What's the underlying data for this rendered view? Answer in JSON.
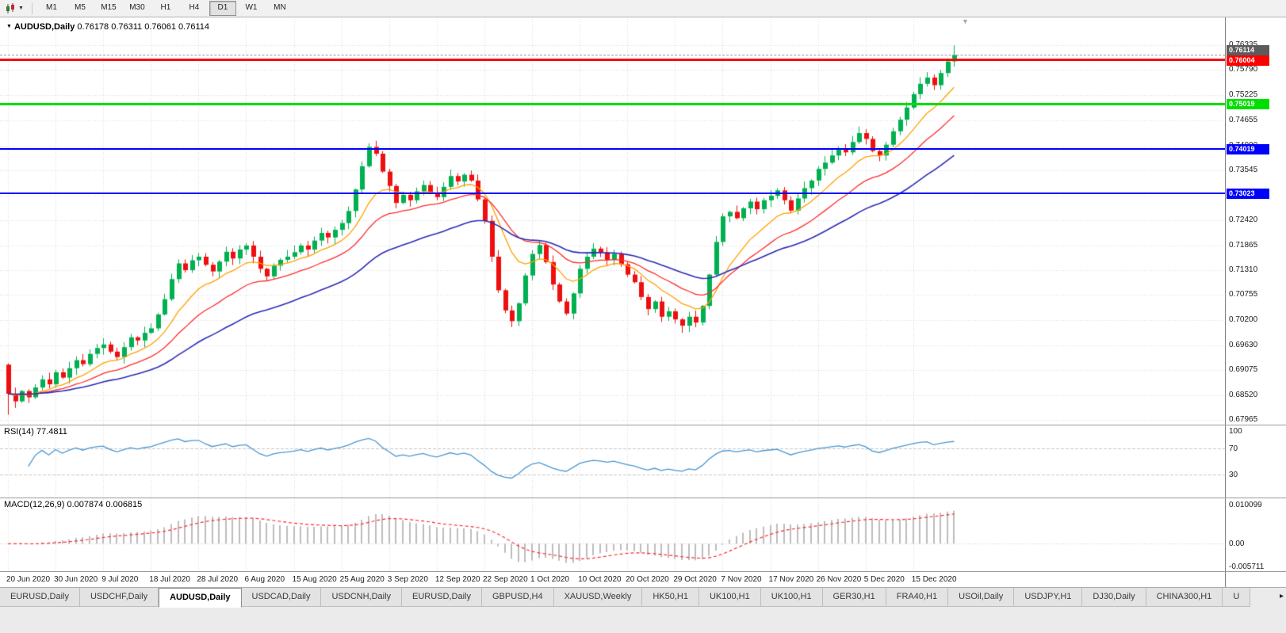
{
  "toolbar": {
    "timeframes": [
      "M1",
      "M5",
      "M15",
      "M30",
      "H1",
      "H4",
      "D1",
      "W1",
      "MN"
    ],
    "active_timeframe": "D1"
  },
  "icons": {
    "dropdown_caret": "▼",
    "title_triangle": "▼",
    "shift_marker": "▼",
    "tab_scroll_right": "▸"
  },
  "colors": {
    "candle_up": "#00B050",
    "candle_down": "#EE0F0F",
    "grid": "#D9D9D9"
  },
  "chart_data": {
    "type": "candlestick",
    "symbol_title": "AUDUSD,Daily",
    "ohlc_text": "0.76178 0.76311 0.76061 0.76114",
    "timeframe": "Daily",
    "price_range": [
      0.6786,
      0.7697
    ],
    "y_axis_labels": [
      "0.76335",
      "0.75790",
      "0.75225",
      "0.74655",
      "0.74090",
      "0.73545",
      "0.72980",
      "0.72420",
      "0.71865",
      "0.71310",
      "0.70755",
      "0.70200",
      "0.69630",
      "0.69075",
      "0.68520",
      "0.67965"
    ],
    "x_labels": [
      "20 Jun 2020",
      "30 Jun 2020",
      "9 Jul 2020",
      "18 Jul 2020",
      "28 Jul 2020",
      "6 Aug 2020",
      "15 Aug 2020",
      "25 Aug 2020",
      "3 Sep 2020",
      "12 Sep 2020",
      "22 Sep 2020",
      "1 Oct 2020",
      "10 Oct 2020",
      "20 Oct 2020",
      "29 Oct 2020",
      "7 Nov 2020",
      "17 Nov 2020",
      "26 Nov 2020",
      "5 Dec 2020",
      "15 Dec 2020"
    ],
    "bars_per_label": 7,
    "first_open": 0.692,
    "closes": [
      0.6855,
      0.6838,
      0.6861,
      0.6847,
      0.6869,
      0.6887,
      0.6876,
      0.6903,
      0.6891,
      0.6912,
      0.693,
      0.6921,
      0.6944,
      0.6957,
      0.6965,
      0.6949,
      0.6937,
      0.6959,
      0.6981,
      0.6974,
      0.6991,
      0.7001,
      0.7032,
      0.7066,
      0.7111,
      0.7146,
      0.7131,
      0.7153,
      0.7161,
      0.7143,
      0.7128,
      0.715,
      0.7172,
      0.7157,
      0.7177,
      0.7186,
      0.7161,
      0.7134,
      0.7117,
      0.7141,
      0.7154,
      0.7161,
      0.7171,
      0.7186,
      0.7177,
      0.7197,
      0.7214,
      0.7204,
      0.7221,
      0.7236,
      0.7263,
      0.7311,
      0.7363,
      0.7406,
      0.7391,
      0.7351,
      0.7319,
      0.7281,
      0.7299,
      0.7287,
      0.7307,
      0.7321,
      0.7304,
      0.7294,
      0.7317,
      0.7341,
      0.7329,
      0.7344,
      0.7331,
      0.7289,
      0.7241,
      0.7161,
      0.7086,
      0.7041,
      0.7017,
      0.7057,
      0.7119,
      0.7167,
      0.7187,
      0.7149,
      0.7099,
      0.7061,
      0.7034,
      0.7079,
      0.7134,
      0.7161,
      0.7179,
      0.7171,
      0.7154,
      0.7167,
      0.7144,
      0.7121,
      0.7104,
      0.7071,
      0.7044,
      0.7061,
      0.7027,
      0.7039,
      0.7021,
      0.7007,
      0.7027,
      0.7014,
      0.7051,
      0.7121,
      0.7194,
      0.7251,
      0.7261,
      0.7247,
      0.7269,
      0.7284,
      0.7267,
      0.7287,
      0.7297,
      0.7309,
      0.7287,
      0.7264,
      0.7291,
      0.7314,
      0.7331,
      0.7357,
      0.7371,
      0.7387,
      0.7401,
      0.7394,
      0.7417,
      0.7437,
      0.7424,
      0.7397,
      0.7387,
      0.7411,
      0.7441,
      0.7467,
      0.7494,
      0.7524,
      0.7547,
      0.7561,
      0.7544,
      0.7571,
      0.7597,
      0.76114
    ],
    "wick_overrides": {
      "0": {
        "low": 0.6808
      },
      "53": {
        "high": 0.7414
      },
      "74": {
        "low": 0.7004
      },
      "99": {
        "low": 0.6991
      },
      "139": {
        "high": 0.76335
      }
    },
    "current_price": {
      "label": "0.76114",
      "color": "#5B5B5B"
    },
    "horizontal_lines": [
      {
        "price": "0.76004",
        "color": "#FF0000",
        "thickness": 3
      },
      {
        "price": "0.75019",
        "color": "#00E000",
        "thickness": 3
      },
      {
        "price": "0.74019",
        "color": "#0000FF",
        "thickness": 2
      },
      {
        "price": "0.73023",
        "color": "#0000FF",
        "thickness": 2
      }
    ],
    "moving_averages": [
      {
        "period": 10,
        "type": "ema",
        "color": "#FFA000",
        "line_width": 1.3
      },
      {
        "period": 20,
        "type": "ema",
        "color": "#FF2A2A",
        "line_width": 1.3
      },
      {
        "period": 40,
        "type": "ema",
        "color": "#2A2AB8",
        "line_width": 1.6
      }
    ],
    "indicators": {
      "rsi": {
        "title": "RSI(14) 77.4811",
        "period": 14,
        "last_value": "77.4811",
        "levels": [
          70,
          30
        ],
        "axis_labels": [
          "100",
          "70",
          "30"
        ],
        "range": [
          0,
          100
        ],
        "color": "#4A96D2"
      },
      "macd": {
        "title": "MACD(12,26,9) 0.007874 0.006815",
        "params": "12,26,9",
        "main_last": "0.007874",
        "signal_last": "0.006815",
        "axis_labels": [
          "0.010099",
          "0.00",
          "-0.005711"
        ],
        "range": [
          -0.0062,
          0.0106
        ],
        "histogram_color": "#BDBDBD",
        "signal_color": "#FF2A2A"
      }
    }
  },
  "tabs": {
    "items": [
      "EURUSD,Daily",
      "USDCHF,Daily",
      "AUDUSD,Daily",
      "USDCAD,Daily",
      "USDCNH,Daily",
      "EURUSD,Daily",
      "GBPUSD,H4",
      "XAUUSD,Weekly",
      "HK50,H1",
      "UK100,H1",
      "UK100,H1",
      "GER30,H1",
      "FRA40,H1",
      "USOil,Daily",
      "USDJPY,H1",
      "DJ30,Daily",
      "CHINA300,H1",
      "U"
    ],
    "active_index": 2
  }
}
